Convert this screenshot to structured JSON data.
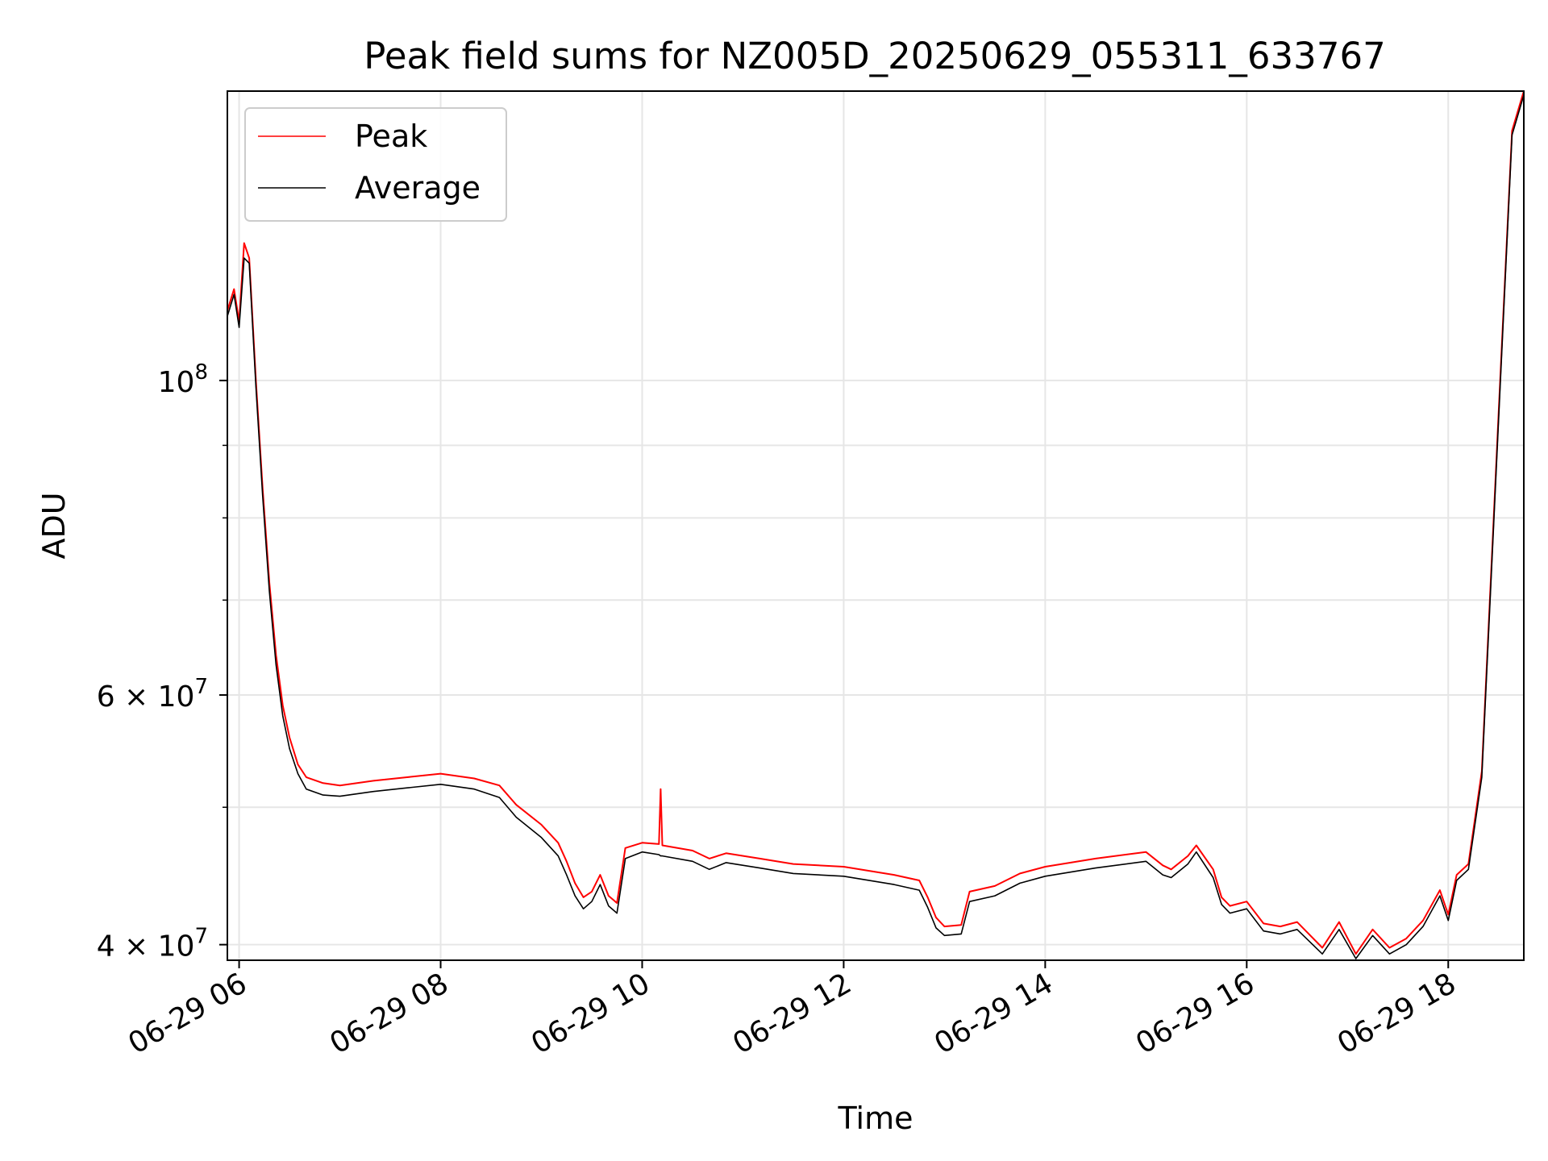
{
  "chart_data": {
    "type": "line",
    "title": "Peak field sums for NZ005D_20250629_055311_633767",
    "xlabel": "Time",
    "ylabel": "ADU",
    "y_scale": "log",
    "ylim": [
      39000000,
      160000000
    ],
    "xlim": [
      "2025-06-29 05:53",
      "2025-06-29 18:45"
    ],
    "grid": true,
    "legend_position": "upper left",
    "x_tick_labels": [
      "06-29 06",
      "06-29 08",
      "06-29 10",
      "06-29 12",
      "06-29 14",
      "06-29 16",
      "06-29 18"
    ],
    "x_ticks": [
      "2025-06-29 06:00",
      "2025-06-29 08:00",
      "2025-06-29 10:00",
      "2025-06-29 12:00",
      "2025-06-29 14:00",
      "2025-06-29 16:00",
      "2025-06-29 18:00"
    ],
    "y_major_ticks": [
      {
        "value": 100000000,
        "base": "10",
        "exp": "8"
      },
      {
        "value": 60000000,
        "base": "6 × 10",
        "exp": "7"
      },
      {
        "value": 40000000,
        "base": "4 × 10",
        "exp": "7"
      }
    ],
    "y_minor_ticks": [
      40000000,
      50000000,
      60000000,
      70000000,
      80000000,
      90000000,
      100000000
    ],
    "series": [
      {
        "name": "Peak",
        "color": "#ff0000",
        "points": [
          [
            "2025-06-29 05:53",
            112000000
          ],
          [
            "2025-06-29 05:57",
            116000000
          ],
          [
            "2025-06-29 06:00",
            110000000
          ],
          [
            "2025-06-29 06:03",
            125000000
          ],
          [
            "2025-06-29 06:06",
            122000000
          ],
          [
            "2025-06-29 06:10",
            100000000
          ],
          [
            "2025-06-29 06:14",
            84000000
          ],
          [
            "2025-06-29 06:18",
            72000000
          ],
          [
            "2025-06-29 06:22",
            64000000
          ],
          [
            "2025-06-29 06:26",
            59000000
          ],
          [
            "2025-06-29 06:30",
            56000000
          ],
          [
            "2025-06-29 06:35",
            53600000
          ],
          [
            "2025-06-29 06:40",
            52500000
          ],
          [
            "2025-06-29 06:50",
            52000000
          ],
          [
            "2025-06-29 07:00",
            51800000
          ],
          [
            "2025-06-29 07:20",
            52200000
          ],
          [
            "2025-06-29 07:40",
            52500000
          ],
          [
            "2025-06-29 08:00",
            52800000
          ],
          [
            "2025-06-29 08:20",
            52400000
          ],
          [
            "2025-06-29 08:35",
            51800000
          ],
          [
            "2025-06-29 08:45",
            50200000
          ],
          [
            "2025-06-29 09:00",
            48600000
          ],
          [
            "2025-06-29 09:10",
            47200000
          ],
          [
            "2025-06-29 09:15",
            45800000
          ],
          [
            "2025-06-29 09:20",
            44200000
          ],
          [
            "2025-06-29 09:25",
            43200000
          ],
          [
            "2025-06-29 09:30",
            43600000
          ],
          [
            "2025-06-29 09:35",
            44800000
          ],
          [
            "2025-06-29 09:40",
            43300000
          ],
          [
            "2025-06-29 09:45",
            42800000
          ],
          [
            "2025-06-29 09:50",
            46800000
          ],
          [
            "2025-06-29 10:00",
            47200000
          ],
          [
            "2025-06-29 10:10",
            47100000
          ],
          [
            "2025-06-29 10:11",
            51500000
          ],
          [
            "2025-06-29 10:12",
            47000000
          ],
          [
            "2025-06-29 10:30",
            46600000
          ],
          [
            "2025-06-29 10:40",
            46000000
          ],
          [
            "2025-06-29 10:50",
            46400000
          ],
          [
            "2025-06-29 11:10",
            46000000
          ],
          [
            "2025-06-29 11:30",
            45600000
          ],
          [
            "2025-06-29 12:00",
            45400000
          ],
          [
            "2025-06-29 12:30",
            44800000
          ],
          [
            "2025-06-29 12:45",
            44400000
          ],
          [
            "2025-06-29 12:50",
            43200000
          ],
          [
            "2025-06-29 12:55",
            41800000
          ],
          [
            "2025-06-29 13:00",
            41200000
          ],
          [
            "2025-06-29 13:10",
            41300000
          ],
          [
            "2025-06-29 13:15",
            43600000
          ],
          [
            "2025-06-29 13:30",
            44000000
          ],
          [
            "2025-06-29 13:45",
            44900000
          ],
          [
            "2025-06-29 14:00",
            45400000
          ],
          [
            "2025-06-29 14:30",
            46000000
          ],
          [
            "2025-06-29 15:00",
            46500000
          ],
          [
            "2025-06-29 15:10",
            45500000
          ],
          [
            "2025-06-29 15:15",
            45200000
          ],
          [
            "2025-06-29 15:25",
            46200000
          ],
          [
            "2025-06-29 15:30",
            47000000
          ],
          [
            "2025-06-29 15:40",
            45200000
          ],
          [
            "2025-06-29 15:45",
            43200000
          ],
          [
            "2025-06-29 15:50",
            42600000
          ],
          [
            "2025-06-29 16:00",
            42900000
          ],
          [
            "2025-06-29 16:10",
            41400000
          ],
          [
            "2025-06-29 16:20",
            41200000
          ],
          [
            "2025-06-29 16:30",
            41500000
          ],
          [
            "2025-06-29 16:45",
            39800000
          ],
          [
            "2025-06-29 16:55",
            41500000
          ],
          [
            "2025-06-29 17:05",
            39400000
          ],
          [
            "2025-06-29 17:15",
            41000000
          ],
          [
            "2025-06-29 17:25",
            39800000
          ],
          [
            "2025-06-29 17:35",
            40400000
          ],
          [
            "2025-06-29 17:45",
            41600000
          ],
          [
            "2025-06-29 17:55",
            43700000
          ],
          [
            "2025-06-29 18:00",
            42000000
          ],
          [
            "2025-06-29 18:05",
            44800000
          ],
          [
            "2025-06-29 18:12",
            45600000
          ],
          [
            "2025-06-29 18:20",
            53000000
          ],
          [
            "2025-06-29 18:30",
            95000000
          ],
          [
            "2025-06-29 18:38",
            150000000
          ],
          [
            "2025-06-29 18:45",
            160000000
          ]
        ]
      },
      {
        "name": "Average",
        "color": "#000000",
        "points": [
          [
            "2025-06-29 05:53",
            111000000
          ],
          [
            "2025-06-29 05:57",
            115000000
          ],
          [
            "2025-06-29 06:00",
            109000000
          ],
          [
            "2025-06-29 06:03",
            122000000
          ],
          [
            "2025-06-29 06:06",
            121000000
          ],
          [
            "2025-06-29 06:10",
            99000000
          ],
          [
            "2025-06-29 06:14",
            83000000
          ],
          [
            "2025-06-29 06:18",
            71000000
          ],
          [
            "2025-06-29 06:22",
            63000000
          ],
          [
            "2025-06-29 06:26",
            58000000
          ],
          [
            "2025-06-29 06:30",
            55000000
          ],
          [
            "2025-06-29 06:35",
            52800000
          ],
          [
            "2025-06-29 06:40",
            51500000
          ],
          [
            "2025-06-29 06:50",
            51000000
          ],
          [
            "2025-06-29 07:00",
            50900000
          ],
          [
            "2025-06-29 07:20",
            51300000
          ],
          [
            "2025-06-29 07:40",
            51600000
          ],
          [
            "2025-06-29 08:00",
            51900000
          ],
          [
            "2025-06-29 08:20",
            51500000
          ],
          [
            "2025-06-29 08:35",
            50800000
          ],
          [
            "2025-06-29 08:45",
            49200000
          ],
          [
            "2025-06-29 09:00",
            47600000
          ],
          [
            "2025-06-29 09:10",
            46200000
          ],
          [
            "2025-06-29 09:15",
            44800000
          ],
          [
            "2025-06-29 09:20",
            43300000
          ],
          [
            "2025-06-29 09:25",
            42400000
          ],
          [
            "2025-06-29 09:30",
            42900000
          ],
          [
            "2025-06-29 09:35",
            44100000
          ],
          [
            "2025-06-29 09:40",
            42600000
          ],
          [
            "2025-06-29 09:45",
            42100000
          ],
          [
            "2025-06-29 09:50",
            46000000
          ],
          [
            "2025-06-29 10:00",
            46500000
          ],
          [
            "2025-06-29 10:10",
            46300000
          ],
          [
            "2025-06-29 10:11",
            46200000
          ],
          [
            "2025-06-29 10:12",
            46200000
          ],
          [
            "2025-06-29 10:30",
            45800000
          ],
          [
            "2025-06-29 10:40",
            45200000
          ],
          [
            "2025-06-29 10:50",
            45700000
          ],
          [
            "2025-06-29 11:10",
            45300000
          ],
          [
            "2025-06-29 11:30",
            44900000
          ],
          [
            "2025-06-29 12:00",
            44700000
          ],
          [
            "2025-06-29 12:30",
            44100000
          ],
          [
            "2025-06-29 12:45",
            43700000
          ],
          [
            "2025-06-29 12:50",
            42500000
          ],
          [
            "2025-06-29 12:55",
            41100000
          ],
          [
            "2025-06-29 13:00",
            40600000
          ],
          [
            "2025-06-29 13:10",
            40700000
          ],
          [
            "2025-06-29 13:15",
            42900000
          ],
          [
            "2025-06-29 13:30",
            43300000
          ],
          [
            "2025-06-29 13:45",
            44200000
          ],
          [
            "2025-06-29 14:00",
            44700000
          ],
          [
            "2025-06-29 14:30",
            45300000
          ],
          [
            "2025-06-29 15:00",
            45800000
          ],
          [
            "2025-06-29 15:10",
            44800000
          ],
          [
            "2025-06-29 15:15",
            44600000
          ],
          [
            "2025-06-29 15:25",
            45600000
          ],
          [
            "2025-06-29 15:30",
            46500000
          ],
          [
            "2025-06-29 15:40",
            44600000
          ],
          [
            "2025-06-29 15:45",
            42700000
          ],
          [
            "2025-06-29 15:50",
            42100000
          ],
          [
            "2025-06-29 16:00",
            42400000
          ],
          [
            "2025-06-29 16:10",
            40900000
          ],
          [
            "2025-06-29 16:20",
            40700000
          ],
          [
            "2025-06-29 16:30",
            41000000
          ],
          [
            "2025-06-29 16:45",
            39400000
          ],
          [
            "2025-06-29 16:55",
            41000000
          ],
          [
            "2025-06-29 17:05",
            39100000
          ],
          [
            "2025-06-29 17:15",
            40600000
          ],
          [
            "2025-06-29 17:25",
            39400000
          ],
          [
            "2025-06-29 17:35",
            40000000
          ],
          [
            "2025-06-29 17:45",
            41200000
          ],
          [
            "2025-06-29 17:55",
            43300000
          ],
          [
            "2025-06-29 18:00",
            41600000
          ],
          [
            "2025-06-29 18:05",
            44400000
          ],
          [
            "2025-06-29 18:12",
            45200000
          ],
          [
            "2025-06-29 18:20",
            52500000
          ],
          [
            "2025-06-29 18:30",
            94000000
          ],
          [
            "2025-06-29 18:38",
            149000000
          ],
          [
            "2025-06-29 18:45",
            159000000
          ]
        ]
      }
    ]
  }
}
